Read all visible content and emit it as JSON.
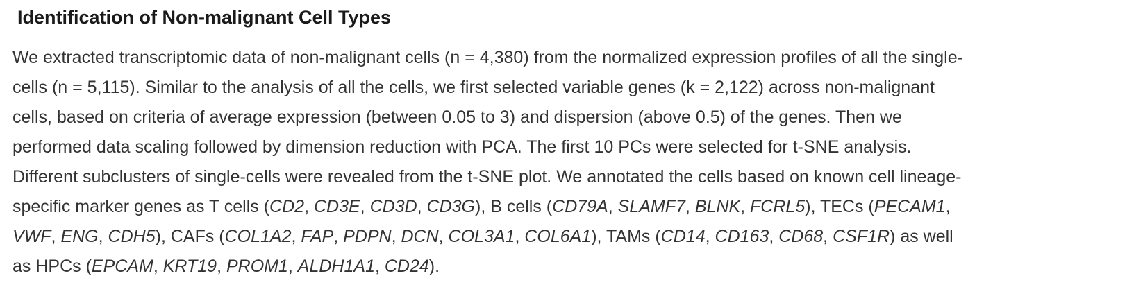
{
  "section": {
    "heading": "Identification of Non-malignant Cell Types",
    "paragraph_lines": [
      [
        {
          "text": "We extracted transcriptomic data of non-malignant cells (n = 4,380) from the normalized expression profiles of all the single-",
          "italic": false
        }
      ],
      [
        {
          "text": "cells (n = 5,115). Similar to the analysis of all the cells, we first selected variable genes (k = 2,122) across non-malignant",
          "italic": false
        }
      ],
      [
        {
          "text": "cells, based on criteria of average expression (between 0.05 to 3) and dispersion (above 0.5) of the genes. Then we",
          "italic": false
        }
      ],
      [
        {
          "text": "performed data scaling followed by dimension reduction with PCA. The first 10 PCs were selected for t-SNE analysis.",
          "italic": false
        }
      ],
      [
        {
          "text": "Different subclusters of single-cells were revealed from the t-SNE plot. We annotated the cells based on known cell lineage-",
          "italic": false
        }
      ],
      [
        {
          "text": "specific marker genes as T cells (",
          "italic": false
        },
        {
          "text": "CD2",
          "italic": true
        },
        {
          "text": ", ",
          "italic": false
        },
        {
          "text": "CD3E",
          "italic": true
        },
        {
          "text": ", ",
          "italic": false
        },
        {
          "text": "CD3D",
          "italic": true
        },
        {
          "text": ", ",
          "italic": false
        },
        {
          "text": "CD3G",
          "italic": true
        },
        {
          "text": "), B cells (",
          "italic": false
        },
        {
          "text": "CD79A",
          "italic": true
        },
        {
          "text": ", ",
          "italic": false
        },
        {
          "text": "SLAMF7",
          "italic": true
        },
        {
          "text": ", ",
          "italic": false
        },
        {
          "text": "BLNK",
          "italic": true
        },
        {
          "text": ", ",
          "italic": false
        },
        {
          "text": "FCRL5",
          "italic": true
        },
        {
          "text": "), TECs (",
          "italic": false
        },
        {
          "text": "PECAM1",
          "italic": true
        },
        {
          "text": ",",
          "italic": false
        }
      ],
      [
        {
          "text": "VWF",
          "italic": true
        },
        {
          "text": ", ",
          "italic": false
        },
        {
          "text": "ENG",
          "italic": true
        },
        {
          "text": ", ",
          "italic": false
        },
        {
          "text": "CDH5",
          "italic": true
        },
        {
          "text": "), CAFs (",
          "italic": false
        },
        {
          "text": "COL1A2",
          "italic": true
        },
        {
          "text": ", ",
          "italic": false
        },
        {
          "text": "FAP",
          "italic": true
        },
        {
          "text": ", ",
          "italic": false
        },
        {
          "text": "PDPN",
          "italic": true
        },
        {
          "text": ", ",
          "italic": false
        },
        {
          "text": "DCN",
          "italic": true
        },
        {
          "text": ", ",
          "italic": false
        },
        {
          "text": "COL3A1",
          "italic": true
        },
        {
          "text": ", ",
          "italic": false
        },
        {
          "text": "COL6A1",
          "italic": true
        },
        {
          "text": "), TAMs (",
          "italic": false
        },
        {
          "text": "CD14",
          "italic": true
        },
        {
          "text": ", ",
          "italic": false
        },
        {
          "text": "CD163",
          "italic": true
        },
        {
          "text": ", ",
          "italic": false
        },
        {
          "text": "CD68",
          "italic": true
        },
        {
          "text": ", ",
          "italic": false
        },
        {
          "text": "CSF1R",
          "italic": true
        },
        {
          "text": ") as well",
          "italic": false
        }
      ],
      [
        {
          "text": "as HPCs (",
          "italic": false
        },
        {
          "text": "EPCAM",
          "italic": true
        },
        {
          "text": ", ",
          "italic": false
        },
        {
          "text": "KRT19",
          "italic": true
        },
        {
          "text": ", ",
          "italic": false
        },
        {
          "text": "PROM1",
          "italic": true
        },
        {
          "text": ", ",
          "italic": false
        },
        {
          "text": "ALDH1A1",
          "italic": true
        },
        {
          "text": ", ",
          "italic": false
        },
        {
          "text": "CD24",
          "italic": true
        },
        {
          "text": ").",
          "italic": false
        }
      ]
    ]
  }
}
